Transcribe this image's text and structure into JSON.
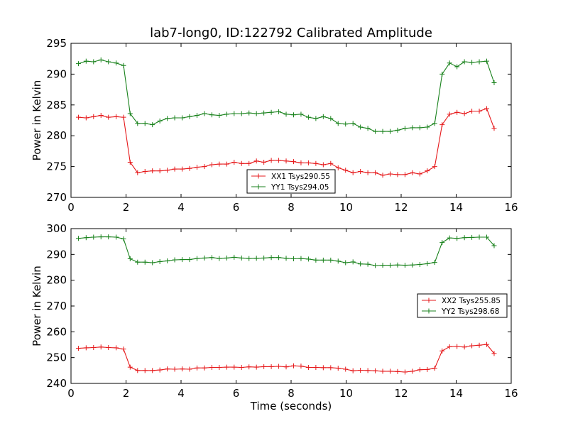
{
  "title": "lab7-long0, ID:122792 Calibrated Amplitude",
  "chart_data": [
    {
      "type": "line",
      "title": "lab7-long0, ID:122792 Calibrated Amplitude",
      "xlabel": "",
      "ylabel": "Power in Kelvin",
      "xlim": [
        0,
        16
      ],
      "ylim": [
        270,
        295
      ],
      "xticks": [
        "0",
        "2",
        "4",
        "6",
        "8",
        "10",
        "12",
        "14",
        "16"
      ],
      "yticks": [
        "270",
        "275",
        "280",
        "285",
        "290",
        "295"
      ],
      "legend_position": "lower-center",
      "x": [
        0.27,
        0.55,
        0.82,
        1.09,
        1.36,
        1.64,
        1.91,
        2.15,
        2.42,
        2.69,
        2.96,
        3.23,
        3.5,
        3.77,
        4.04,
        4.31,
        4.58,
        4.85,
        5.12,
        5.39,
        5.66,
        5.93,
        6.2,
        6.47,
        6.74,
        7.01,
        7.28,
        7.55,
        7.82,
        8.09,
        8.36,
        8.63,
        8.9,
        9.17,
        9.44,
        9.71,
        9.98,
        10.25,
        10.52,
        10.79,
        11.06,
        11.33,
        11.6,
        11.87,
        12.14,
        12.41,
        12.68,
        12.95,
        13.22,
        13.49,
        13.76,
        14.03,
        14.3,
        14.57,
        14.84,
        15.11,
        15.38
      ],
      "series": [
        {
          "name": "XX1 Tsys290.55",
          "color": "#e6191b",
          "values": [
            283.0,
            282.9,
            283.1,
            283.3,
            283.0,
            283.1,
            283.0,
            275.7,
            274.0,
            274.2,
            274.3,
            274.3,
            274.4,
            274.6,
            274.6,
            274.7,
            274.9,
            275.0,
            275.3,
            275.4,
            275.4,
            275.7,
            275.5,
            275.5,
            275.9,
            275.7,
            276.0,
            276.0,
            275.9,
            275.8,
            275.6,
            275.6,
            275.5,
            275.3,
            275.5,
            274.8,
            274.4,
            274.0,
            274.2,
            274.0,
            274.0,
            273.6,
            273.8,
            273.7,
            273.7,
            274.0,
            273.8,
            274.3,
            275.0,
            281.8,
            283.5,
            283.8,
            283.6,
            284.0,
            284.0,
            284.4,
            281.2
          ]
        },
        {
          "name": "YY1 Tsys294.05",
          "color": "#19821c",
          "values": [
            291.7,
            292.1,
            292.0,
            292.3,
            292.0,
            291.8,
            291.4,
            283.6,
            282.0,
            282.0,
            281.8,
            282.4,
            282.8,
            282.9,
            282.9,
            283.1,
            283.3,
            283.6,
            283.4,
            283.3,
            283.5,
            283.6,
            283.6,
            283.7,
            283.6,
            283.7,
            283.8,
            283.9,
            283.5,
            283.4,
            283.5,
            283.0,
            282.8,
            283.1,
            282.8,
            282.0,
            281.9,
            282.0,
            281.4,
            281.2,
            280.7,
            280.7,
            280.7,
            280.9,
            281.2,
            281.3,
            281.3,
            281.4,
            282.0,
            290.0,
            291.8,
            291.2,
            292.0,
            291.9,
            292.0,
            292.1,
            288.6
          ]
        }
      ]
    },
    {
      "type": "line",
      "title": "",
      "xlabel": "Time (seconds)",
      "ylabel": "Power in Kelvin",
      "xlim": [
        0,
        16
      ],
      "ylim": [
        240,
        300
      ],
      "xticks": [
        "0",
        "2",
        "4",
        "6",
        "8",
        "10",
        "12",
        "14",
        "16"
      ],
      "yticks": [
        "240",
        "250",
        "260",
        "270",
        "280",
        "290",
        "300"
      ],
      "legend_position": "center-right",
      "x": [
        0.27,
        0.55,
        0.82,
        1.09,
        1.36,
        1.64,
        1.91,
        2.15,
        2.42,
        2.69,
        2.96,
        3.23,
        3.5,
        3.77,
        4.04,
        4.31,
        4.58,
        4.85,
        5.12,
        5.39,
        5.66,
        5.93,
        6.2,
        6.47,
        6.74,
        7.01,
        7.28,
        7.55,
        7.82,
        8.09,
        8.36,
        8.63,
        8.9,
        9.17,
        9.44,
        9.71,
        9.98,
        10.25,
        10.52,
        10.79,
        11.06,
        11.33,
        11.6,
        11.87,
        12.14,
        12.41,
        12.68,
        12.95,
        13.22,
        13.49,
        13.76,
        14.03,
        14.3,
        14.57,
        14.84,
        15.11,
        15.38
      ],
      "series": [
        {
          "name": "XX2 Tsys255.85",
          "color": "#e6191b",
          "values": [
            253.6,
            253.8,
            253.9,
            254.1,
            253.9,
            253.8,
            253.3,
            246.3,
            245.0,
            245.0,
            245.0,
            245.2,
            245.6,
            245.5,
            245.6,
            245.5,
            246.0,
            246.0,
            246.2,
            246.2,
            246.3,
            246.3,
            246.2,
            246.4,
            246.3,
            246.5,
            246.5,
            246.6,
            246.4,
            246.8,
            246.7,
            246.2,
            246.2,
            246.1,
            246.1,
            245.9,
            245.5,
            244.9,
            245.1,
            245.0,
            244.9,
            244.7,
            244.7,
            244.6,
            244.4,
            244.7,
            245.3,
            245.4,
            245.9,
            252.6,
            254.2,
            254.3,
            254.1,
            254.6,
            254.8,
            255.1,
            251.6
          ]
        },
        {
          "name": "YY2 Tsys298.68",
          "color": "#19821c",
          "values": [
            296.2,
            296.5,
            296.7,
            296.8,
            296.8,
            296.7,
            296.0,
            288.3,
            287.0,
            287.0,
            286.8,
            287.2,
            287.5,
            287.9,
            288.0,
            288.0,
            288.4,
            288.6,
            288.8,
            288.4,
            288.6,
            288.9,
            288.6,
            288.4,
            288.5,
            288.6,
            288.8,
            288.8,
            288.5,
            288.3,
            288.4,
            288.2,
            287.8,
            287.8,
            287.8,
            287.4,
            286.8,
            287.1,
            286.3,
            286.2,
            285.7,
            285.8,
            285.8,
            285.9,
            285.8,
            285.9,
            286.1,
            286.4,
            286.9,
            294.6,
            296.4,
            296.2,
            296.5,
            296.6,
            296.7,
            296.7,
            293.4
          ]
        }
      ]
    }
  ]
}
